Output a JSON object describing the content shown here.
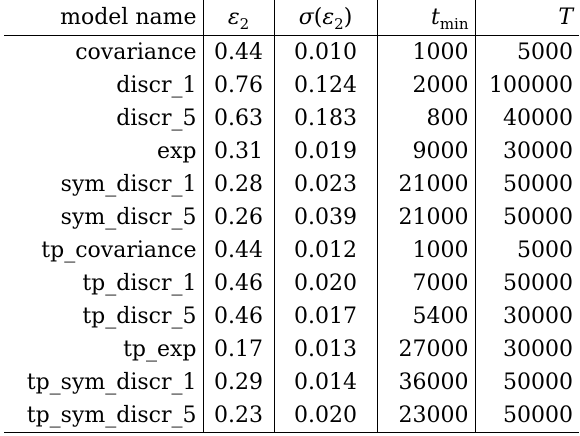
{
  "table": {
    "headers": {
      "name": "model name",
      "epsilon": {
        "symbol": "ε",
        "sub": "2"
      },
      "sigma": {
        "symbol": "σ",
        "open": "(",
        "inner": "ε",
        "sub": "2",
        "close": ")"
      },
      "tmin": {
        "symbol": "t",
        "sub": "min"
      },
      "T": {
        "symbol": "T"
      }
    },
    "rows": [
      {
        "name": "covariance",
        "epsilon": "0.44",
        "sigma": "0.010",
        "tmin": "1000",
        "T": "5000"
      },
      {
        "name": "discr_1",
        "epsilon": "0.76",
        "sigma": "0.124",
        "tmin": "2000",
        "T": "100000"
      },
      {
        "name": "discr_5",
        "epsilon": "0.63",
        "sigma": "0.183",
        "tmin": "800",
        "T": "40000"
      },
      {
        "name": "exp",
        "epsilon": "0.31",
        "sigma": "0.019",
        "tmin": "9000",
        "T": "30000"
      },
      {
        "name": "sym_discr_1",
        "epsilon": "0.28",
        "sigma": "0.023",
        "tmin": "21000",
        "T": "50000"
      },
      {
        "name": "sym_discr_5",
        "epsilon": "0.26",
        "sigma": "0.039",
        "tmin": "21000",
        "T": "50000"
      },
      {
        "name": "tp_covariance",
        "epsilon": "0.44",
        "sigma": "0.012",
        "tmin": "1000",
        "T": "5000"
      },
      {
        "name": "tp_discr_1",
        "epsilon": "0.46",
        "sigma": "0.020",
        "tmin": "7000",
        "T": "50000"
      },
      {
        "name": "tp_discr_5",
        "epsilon": "0.46",
        "sigma": "0.017",
        "tmin": "5400",
        "T": "30000"
      },
      {
        "name": "tp_exp",
        "epsilon": "0.17",
        "sigma": "0.013",
        "tmin": "27000",
        "T": "30000"
      },
      {
        "name": "tp_sym_discr_1",
        "epsilon": "0.29",
        "sigma": "0.014",
        "tmin": "36000",
        "T": "50000"
      },
      {
        "name": "tp_sym_discr_5",
        "epsilon": "0.23",
        "sigma": "0.020",
        "tmin": "23000",
        "T": "50000"
      }
    ]
  }
}
